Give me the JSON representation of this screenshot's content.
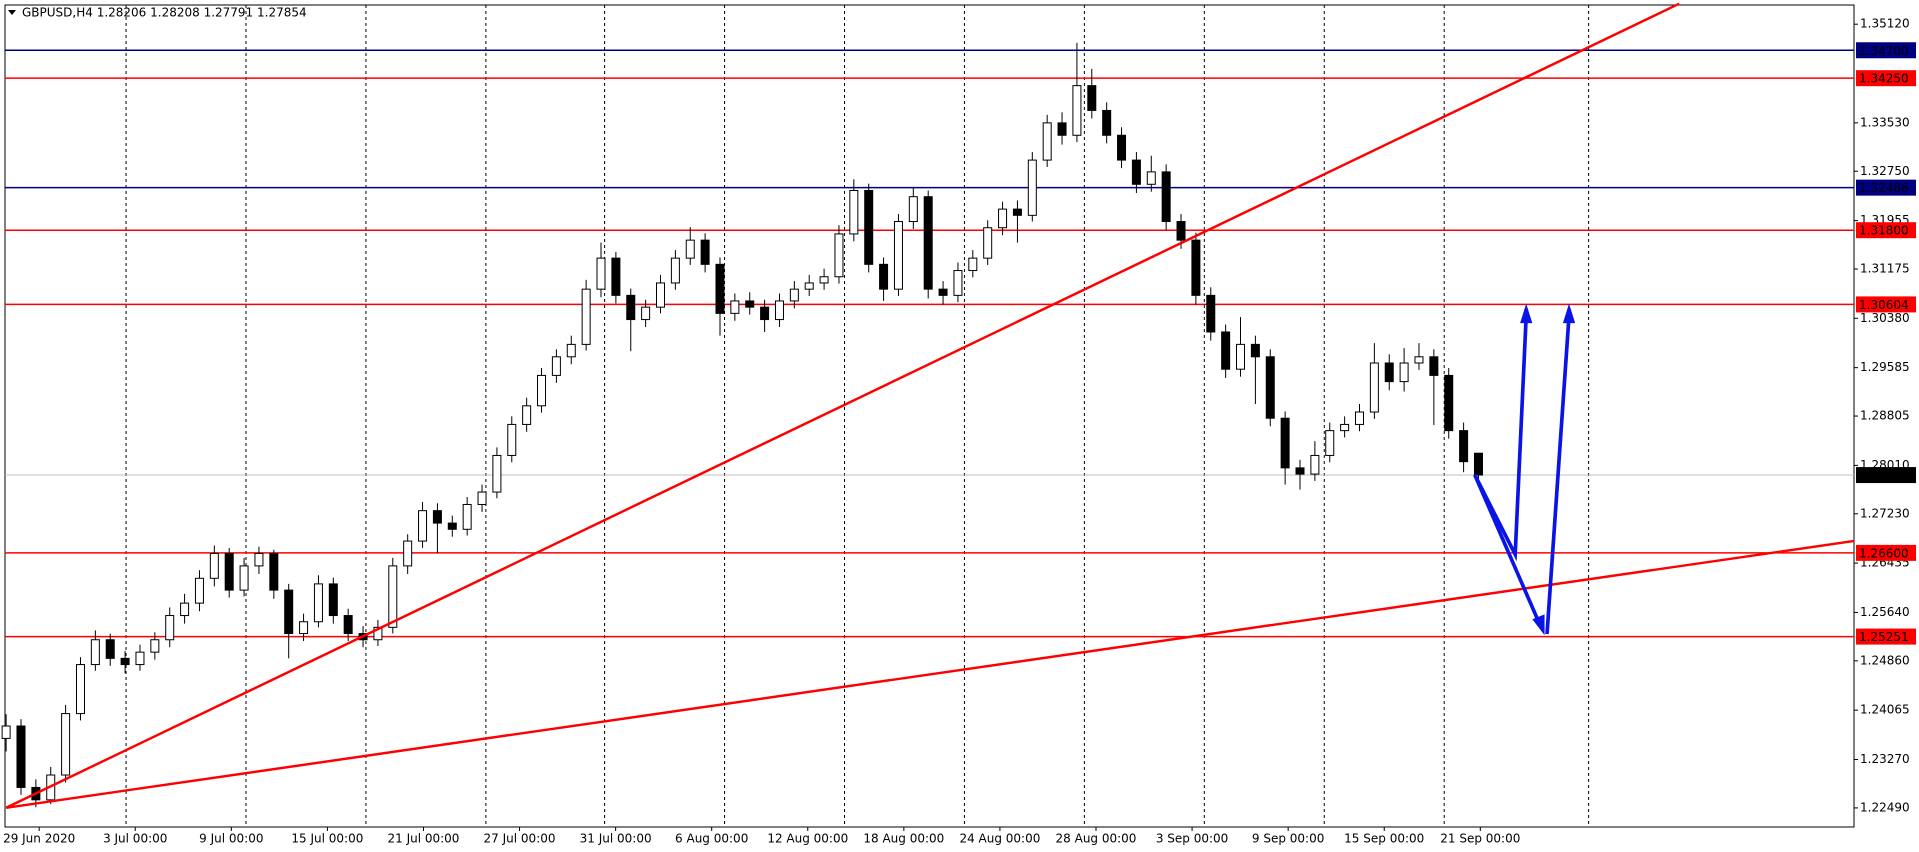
{
  "chart_data": {
    "type": "candlestick",
    "title": "GBPUSD,H4  1.28206 1.28208 1.27791 1.27854",
    "categories": [
      "29 Jun 2020",
      "3 Jul 00:00",
      "9 Jul 00:00",
      "15 Jul 00:00",
      "21 Jul 00:00",
      "27 Jul 00:00",
      "31 Jul 00:00",
      "6 Aug 00:00",
      "12 Aug 00:00",
      "18 Aug 00:00",
      "24 Aug 00:00",
      "28 Aug 00:00",
      "3 Sep 00:00",
      "9 Sep 00:00",
      "15 Sep 00:00",
      "21 Sep 00:00"
    ],
    "open": [
      1.2361,
      1.2381,
      1.2282,
      1.2262,
      1.2302,
      1.2401,
      1.248,
      1.252,
      1.249,
      1.248,
      1.25,
      1.252,
      1.2559,
      1.2579,
      1.2619,
      1.2659,
      1.26,
      1.2639,
      1.2659,
      1.26,
      1.253,
      1.2549,
      1.261,
      1.2559,
      1.253,
      1.252,
      1.254,
      1.2639,
      1.2679,
      1.2728,
      1.2708,
      1.2698,
      1.2738,
      1.2758,
      1.2817,
      1.2867,
      1.2897,
      1.2946,
      1.2976,
      1.2996,
      1.3085,
      1.3135,
      1.3075,
      1.3036,
      1.3056,
      1.3095,
      1.3135,
      1.3164,
      1.3125,
      1.3046,
      1.3066,
      1.3056,
      1.3036,
      1.3066,
      1.3085,
      1.3095,
      1.3105,
      1.3174,
      1.3244,
      1.3125,
      1.3085,
      1.3194,
      1.3234,
      1.3085,
      1.3075,
      1.3115,
      1.3135,
      1.3184,
      1.3214,
      1.3204,
      1.3293,
      1.3353,
      1.3333,
      1.3413,
      1.3373,
      1.3333,
      1.3293,
      1.3254,
      1.3274,
      1.3194,
      1.3164,
      1.3075,
      1.3016,
      1.2956,
      1.2996,
      1.2976,
      1.2877,
      1.2797,
      1.2787,
      1.2817,
      1.2857,
      1.2867,
      1.2887,
      1.2966,
      1.2936,
      1.2966,
      1.2976,
      1.2946,
      1.2857,
      1.28206
    ],
    "high": [
      1.24,
      1.2392,
      1.2295,
      1.2315,
      1.2415,
      1.2492,
      1.2535,
      1.253,
      1.2502,
      1.2512,
      1.2532,
      1.2572,
      1.2594,
      1.2632,
      1.2672,
      1.2668,
      1.2652,
      1.267,
      1.2665,
      1.261,
      1.2562,
      1.2624,
      1.262,
      1.257,
      1.2542,
      1.2552,
      1.2652,
      1.269,
      1.2742,
      1.274,
      1.272,
      1.275,
      1.277,
      1.283,
      1.288,
      1.291,
      1.2958,
      1.2988,
      1.301,
      1.31,
      1.316,
      1.3145,
      1.3086,
      1.3068,
      1.3108,
      1.3148,
      1.3185,
      1.3175,
      1.3136,
      1.3078,
      1.308,
      1.3068,
      1.3078,
      1.3098,
      1.3108,
      1.3118,
      1.3188,
      1.3262,
      1.3255,
      1.3136,
      1.3206,
      1.325,
      1.3244,
      1.3098,
      1.3128,
      1.3148,
      1.3196,
      1.3226,
      1.3228,
      1.3306,
      1.3366,
      1.337,
      1.3482,
      1.344,
      1.3386,
      1.3346,
      1.3306,
      1.33,
      1.3286,
      1.3206,
      1.3176,
      1.3088,
      1.3028,
      1.304,
      1.301,
      1.2988,
      1.2888,
      1.281,
      1.284,
      1.287,
      1.288,
      1.29,
      1.2998,
      1.298,
      1.299,
      1.2998,
      1.2988,
      1.2958,
      1.287,
      1.28208
    ],
    "low": [
      1.234,
      1.227,
      1.225,
      1.2255,
      1.229,
      1.239,
      1.247,
      1.2478,
      1.2466,
      1.247,
      1.2488,
      1.2508,
      1.2546,
      1.2566,
      1.2606,
      1.2588,
      1.259,
      1.2626,
      1.2586,
      1.249,
      1.2518,
      1.254,
      1.2546,
      1.2518,
      1.2508,
      1.251,
      1.253,
      1.2626,
      1.2668,
      1.266,
      1.2686,
      1.2688,
      1.2726,
      1.2748,
      1.2806,
      1.2855,
      1.2886,
      1.2934,
      1.2964,
      1.2986,
      1.3072,
      1.3062,
      1.2985,
      1.3024,
      1.3046,
      1.3084,
      1.3124,
      1.3112,
      1.301,
      1.3034,
      1.3044,
      1.3016,
      1.3024,
      1.3054,
      1.3074,
      1.3084,
      1.3094,
      1.3162,
      1.3112,
      1.3066,
      1.3074,
      1.3182,
      1.307,
      1.306,
      1.3064,
      1.3104,
      1.3124,
      1.3172,
      1.316,
      1.3194,
      1.3282,
      1.3318,
      1.3322,
      1.336,
      1.332,
      1.328,
      1.324,
      1.3242,
      1.318,
      1.315,
      1.306,
      1.3002,
      1.2942,
      1.2944,
      1.29,
      1.2864,
      1.277,
      1.2762,
      1.2776,
      1.2806,
      1.2846,
      1.2856,
      1.2876,
      1.2922,
      1.292,
      1.2955,
      1.2866,
      1.2844,
      1.279,
      1.27791
    ],
    "close": [
      1.2381,
      1.2282,
      1.2262,
      1.2302,
      1.2401,
      1.248,
      1.252,
      1.249,
      1.248,
      1.25,
      1.252,
      1.2559,
      1.2579,
      1.2619,
      1.2659,
      1.26,
      1.2639,
      1.2659,
      1.26,
      1.253,
      1.2549,
      1.261,
      1.2559,
      1.253,
      1.252,
      1.254,
      1.2639,
      1.2679,
      1.2728,
      1.2708,
      1.2698,
      1.2738,
      1.2758,
      1.2817,
      1.2867,
      1.2897,
      1.2946,
      1.2976,
      1.2996,
      1.3085,
      1.3135,
      1.3075,
      1.3036,
      1.3056,
      1.3095,
      1.3135,
      1.3164,
      1.3125,
      1.3046,
      1.3066,
      1.3056,
      1.3036,
      1.3066,
      1.3085,
      1.3095,
      1.3105,
      1.3174,
      1.3244,
      1.3125,
      1.3085,
      1.3194,
      1.3234,
      1.3085,
      1.3075,
      1.3115,
      1.3135,
      1.3184,
      1.3214,
      1.3204,
      1.3293,
      1.3353,
      1.3333,
      1.3413,
      1.3373,
      1.3333,
      1.3293,
      1.3254,
      1.3274,
      1.3194,
      1.3164,
      1.3075,
      1.3016,
      1.2956,
      1.2996,
      1.2976,
      1.2877,
      1.2797,
      1.2787,
      1.2817,
      1.2857,
      1.2867,
      1.2887,
      1.2966,
      1.2936,
      1.2966,
      1.2976,
      1.2946,
      1.2857,
      1.2807,
      1.27854
    ],
    "ylim": [
      1.2215,
      1.3551
    ],
    "yticks": [
      {
        "value": 1.3512,
        "label": "1.35120"
      },
      {
        "value": 1.3353,
        "label": "1.33530"
      },
      {
        "value": 1.3275,
        "label": "1.32750"
      },
      1.31955,
      1.31175,
      {
        "value": 1.3038,
        "label": "1.30380"
      },
      1.29585,
      1.28805,
      {
        "value": 1.2801,
        "label": "1.28010"
      },
      {
        "value": 1.2723,
        "label": "1.27230"
      },
      1.26435,
      {
        "value": 1.2564,
        "label": "1.25640"
      },
      {
        "value": 1.2486,
        "label": "1.24860"
      },
      1.24065,
      {
        "value": 1.2327,
        "label": "1.23270"
      },
      {
        "value": 1.2249,
        "label": "1.22490"
      }
    ],
    "levels": [
      {
        "price": {
          "value": 1.347,
          "label": "1.34700"
        },
        "color": "#000080"
      },
      {
        "price": {
          "value": 1.3425,
          "label": "1.34250"
        },
        "color": "#ff0000"
      },
      {
        "price": 1.32486,
        "color": "#000080"
      },
      {
        "price": {
          "value": 1.318,
          "label": "1.31800"
        },
        "color": "#ff0000"
      },
      {
        "price": 1.30604,
        "color": "#ff0000"
      },
      {
        "price": {
          "value": 1.266,
          "label": "1.26600"
        },
        "color": "#ff0000"
      },
      {
        "price": 1.25251,
        "color": "#ff0000"
      }
    ],
    "last_price": 1.27854,
    "candle_color": "#000000"
  }
}
